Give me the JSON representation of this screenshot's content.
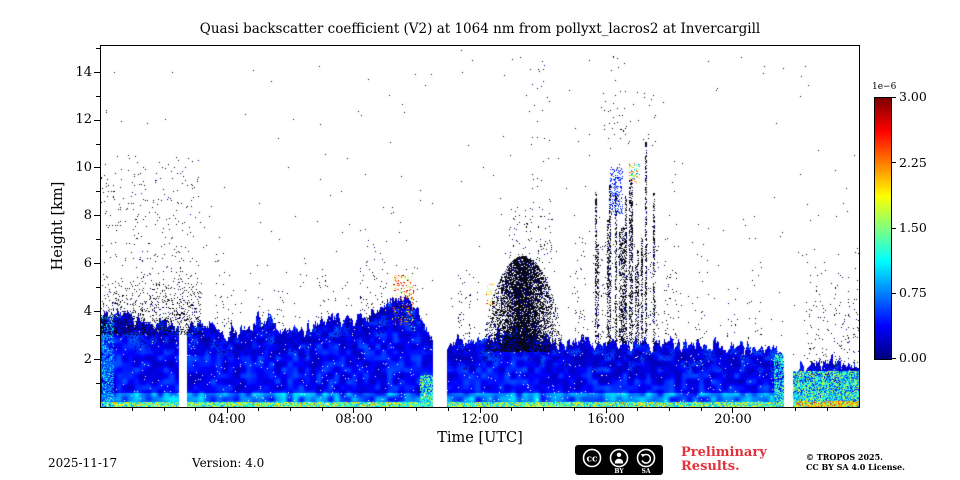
{
  "chart_data": {
    "type": "heatmap",
    "title": "Quasi backscatter coefficient (V2) at 1064 nm from pollyxt_lacros2 at Invercargill",
    "xlabel": "Time [UTC]",
    "ylabel": "Height [km]",
    "x_range_hours": [
      0,
      24
    ],
    "x_ticks": [
      {
        "hour": 4,
        "label": "04:00"
      },
      {
        "hour": 8,
        "label": "08:00"
      },
      {
        "hour": 12,
        "label": "12:00"
      },
      {
        "hour": 16,
        "label": "16:00"
      },
      {
        "hour": 20,
        "label": "20:00"
      }
    ],
    "x_minor_tick_hours": [
      1,
      2,
      3,
      5,
      6,
      7,
      9,
      10,
      11,
      13,
      14,
      15,
      17,
      18,
      19,
      21,
      22,
      23
    ],
    "y_range_km": [
      0,
      15.1
    ],
    "y_ticks": [
      {
        "km": 2,
        "label": "2"
      },
      {
        "km": 4,
        "label": "4"
      },
      {
        "km": 6,
        "label": "6"
      },
      {
        "km": 8,
        "label": "8"
      },
      {
        "km": 10,
        "label": "10"
      },
      {
        "km": 12,
        "label": "12"
      },
      {
        "km": 14,
        "label": "14"
      }
    ],
    "y_minor_tick_km": [
      1,
      3,
      5,
      7,
      9,
      11,
      13,
      15
    ],
    "colorbar": {
      "colormap": "jet",
      "scale_label": "1e−6",
      "vmin": 0,
      "vmax": 3,
      "ticks": [
        {
          "value": 0,
          "label": "0.00"
        },
        {
          "value": 0.75,
          "label": "0.75"
        },
        {
          "value": 1.5,
          "label": "1.50"
        },
        {
          "value": 2.25,
          "label": "2.25"
        },
        {
          "value": 3,
          "label": "3.00"
        }
      ]
    },
    "layer_top_km": [
      3.9,
      3.8,
      3.6,
      3.5,
      3.6,
      3.4,
      3.3,
      3.2,
      3.1,
      3.3,
      3.6,
      3.4,
      3.2,
      3.4,
      3.6,
      3.8,
      3.6,
      3.9,
      4.3,
      4.6,
      4.0,
      2.8,
      2.6,
      2.7,
      2.8,
      3.0,
      3.1,
      3.0,
      2.9,
      2.7,
      2.6,
      2.6,
      2.7,
      2.7,
      2.7,
      2.6,
      2.6,
      2.7,
      2.6,
      2.6,
      2.6,
      2.5,
      2.5,
      2.4,
      1.6,
      1.5,
      1.8,
      1.9,
      1.7
    ],
    "gaps_hours": [
      [
        2.45,
        2.7
      ],
      [
        10.5,
        10.95
      ],
      [
        21.62,
        21.88
      ]
    ],
    "speckle_regions": [
      {
        "t0": 0.0,
        "t1": 3.15,
        "h0": 3.0,
        "h1": 6.3,
        "density": 0.32,
        "mode": "fade"
      },
      {
        "t0": 0.0,
        "t1": 3.15,
        "h0": 6.0,
        "h1": 10.5,
        "density": 0.018,
        "mode": "uniform"
      },
      {
        "t0": 3.6,
        "t1": 4.2,
        "h0": 3.0,
        "h1": 7.8,
        "density": 0.05,
        "mode": "fade"
      },
      {
        "t0": 4.9,
        "t1": 5.8,
        "h0": 3.2,
        "h1": 6.6,
        "density": 0.04,
        "mode": "fade"
      },
      {
        "t0": 6.8,
        "t1": 7.2,
        "h0": 3.2,
        "h1": 5.5,
        "density": 0.03,
        "mode": "uniform"
      },
      {
        "t0": 8.2,
        "t1": 9.0,
        "h0": 3.5,
        "h1": 7.6,
        "density": 0.06,
        "mode": "fade"
      },
      {
        "t0": 9.0,
        "t1": 9.9,
        "h0": 3.6,
        "h1": 6.0,
        "density": 0.08,
        "mode": "fade"
      },
      {
        "t0": 11.3,
        "t1": 11.7,
        "h0": 2.6,
        "h1": 5.6,
        "density": 0.04,
        "mode": "uniform"
      },
      {
        "t0": 12.1,
        "t1": 14.6,
        "h0": 2.3,
        "h1": 6.3,
        "density": 0.45,
        "mode": "dome"
      },
      {
        "t0": 12.9,
        "t1": 14.3,
        "h0": 6.0,
        "h1": 8.4,
        "density": 0.04,
        "mode": "uniform"
      },
      {
        "t0": 13.4,
        "t1": 14.2,
        "h0": 8.4,
        "h1": 14.9,
        "density": 0.006,
        "mode": "uniform"
      },
      {
        "t0": 15.0,
        "t1": 15.35,
        "h0": 2.6,
        "h1": 7.0,
        "density": 0.04,
        "mode": "uniform"
      },
      {
        "t0": 15.55,
        "t1": 17.65,
        "h0": 2.6,
        "h1": 11.2,
        "density": 0.3,
        "mode": "streaks"
      },
      {
        "t0": 15.8,
        "t1": 17.6,
        "h0": 11.0,
        "h1": 13.2,
        "density": 0.015,
        "mode": "uniform"
      },
      {
        "t0": 16.0,
        "t1": 16.6,
        "h0": 11.2,
        "h1": 14.6,
        "density": 0.005,
        "mode": "uniform"
      },
      {
        "t0": 17.8,
        "t1": 18.3,
        "h0": 2.6,
        "h1": 8.6,
        "density": 0.05,
        "mode": "fade"
      },
      {
        "t0": 18.8,
        "t1": 19.2,
        "h0": 2.6,
        "h1": 8.0,
        "density": 0.04,
        "mode": "fade"
      },
      {
        "t0": 19.8,
        "t1": 20.1,
        "h0": 2.6,
        "h1": 4.6,
        "density": 0.03,
        "mode": "uniform"
      },
      {
        "t0": 20.5,
        "t1": 20.9,
        "h0": 2.6,
        "h1": 7.7,
        "density": 0.03,
        "mode": "fade"
      },
      {
        "t0": 22.3,
        "t1": 23.0,
        "h0": 1.6,
        "h1": 7.8,
        "density": 0.05,
        "mode": "fade"
      },
      {
        "t0": 23.2,
        "t1": 23.7,
        "h0": 1.6,
        "h1": 5.5,
        "density": 0.04,
        "mode": "uniform"
      },
      {
        "t0": 23.8,
        "t1": 24.0,
        "h0": 1.6,
        "h1": 9.0,
        "density": 0.05,
        "mode": "fade"
      }
    ],
    "color_features": [
      {
        "t0": 0.03,
        "t1": 0.4,
        "h0": 0,
        "h1": 3.8,
        "density": 0.5,
        "vmin": 0.15,
        "vmax": 0.45
      },
      {
        "t0": 9.2,
        "t1": 9.9,
        "h0": 3.4,
        "h1": 5.5,
        "density": 0.18,
        "vmin": 0.5,
        "vmax": 0.95
      },
      {
        "t0": 10.1,
        "t1": 10.5,
        "h0": 0,
        "h1": 1.3,
        "density": 0.7,
        "vmin": 0.25,
        "vmax": 0.6
      },
      {
        "t0": 12.15,
        "t1": 12.5,
        "h0": 4.0,
        "h1": 5.2,
        "density": 0.1,
        "vmin": 0.5,
        "vmax": 0.9
      },
      {
        "t0": 16.1,
        "t1": 16.5,
        "h0": 8.0,
        "h1": 10.0,
        "density": 0.3,
        "vmin": 0.05,
        "vmax": 0.25
      },
      {
        "t0": 16.7,
        "t1": 17.05,
        "h0": 9.3,
        "h1": 10.2,
        "density": 0.35,
        "vmin": 0.25,
        "vmax": 0.85
      },
      {
        "t0": 21.3,
        "t1": 21.6,
        "h0": 0,
        "h1": 2.2,
        "density": 0.6,
        "vmin": 0.22,
        "vmax": 0.55
      },
      {
        "t0": 21.9,
        "t1": 24,
        "h0": 0,
        "h1": 1.5,
        "density": 0.85,
        "vmin": 0.18,
        "vmax": 0.62
      },
      {
        "t0": 22.0,
        "t1": 24,
        "h0": 0,
        "h1": 0.25,
        "density": 0.8,
        "vmin": 0.45,
        "vmax": 0.85
      }
    ]
  },
  "footer": {
    "date": "2025-11-17",
    "version": "Version: 4.0",
    "preliminary": [
      "Preliminary",
      "Results."
    ],
    "copyright": [
      "© TROPOS 2025.",
      "CC BY SA 4.0 License."
    ],
    "badge": {
      "cc": "cc",
      "by": "BY",
      "sa": "SA"
    }
  }
}
